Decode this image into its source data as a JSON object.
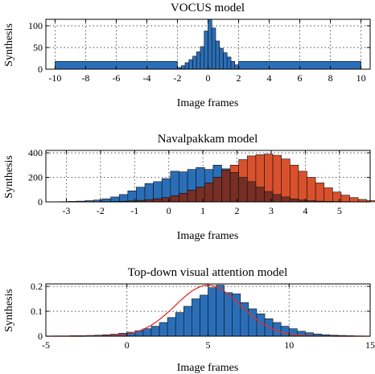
{
  "figure": {
    "background": "#ffffff"
  },
  "chart_data": [
    {
      "type": "bar",
      "title": "VOCUS model",
      "xlabel": "Image frames",
      "ylabel": "Synthesis",
      "xlim": [
        -10.6,
        10.6
      ],
      "ylim": [
        0,
        115
      ],
      "xticks": [
        -10,
        -8,
        -6,
        -4,
        -2,
        0,
        2,
        4,
        6,
        8,
        10
      ],
      "yticks": [
        0,
        50,
        100
      ],
      "grid": true,
      "colors": {
        "blue": "#2A6EB8"
      },
      "series": [
        {
          "color": "#2A6EB8",
          "bins": [
            {
              "x0": -10,
              "x1": -2,
              "y": 18
            },
            {
              "x0": -2,
              "x1": -1.75,
              "y": 4
            },
            {
              "x0": -1.75,
              "x1": -1.5,
              "y": 8
            },
            {
              "x0": -1.5,
              "x1": -1.25,
              "y": 15
            },
            {
              "x0": -1.25,
              "x1": -1.0,
              "y": 22
            },
            {
              "x0": -1.0,
              "x1": -0.75,
              "y": 30
            },
            {
              "x0": -0.75,
              "x1": -0.5,
              "y": 40
            },
            {
              "x0": -0.5,
              "x1": -0.25,
              "y": 52
            },
            {
              "x0": -0.25,
              "x1": 0.0,
              "y": 88
            },
            {
              "x0": 0.0,
              "x1": 0.25,
              "y": 118
            },
            {
              "x0": 0.25,
              "x1": 0.5,
              "y": 95
            },
            {
              "x0": 0.5,
              "x1": 0.75,
              "y": 65
            },
            {
              "x0": 0.75,
              "x1": 1.0,
              "y": 48
            },
            {
              "x0": 1.0,
              "x1": 1.25,
              "y": 38
            },
            {
              "x0": 1.25,
              "x1": 1.5,
              "y": 28
            },
            {
              "x0": 1.5,
              "x1": 1.75,
              "y": 18
            },
            {
              "x0": 1.75,
              "x1": 2.0,
              "y": 10
            },
            {
              "x0": 2.0,
              "x1": 10.0,
              "y": 18
            }
          ]
        }
      ]
    },
    {
      "type": "bar",
      "title": "Navalpakkam model",
      "xlabel": "Image frames",
      "ylabel": "Synthesis",
      "xlim": [
        -3.6,
        5.9
      ],
      "ylim": [
        0,
        420
      ],
      "xticks": [
        -3,
        -2,
        -1,
        0,
        1,
        2,
        3,
        4,
        5
      ],
      "yticks": [
        0,
        200,
        400
      ],
      "grid": true,
      "colors": {
        "blue": "#2A6EB8",
        "red": "#D9512C",
        "overlap": "#6B2A24"
      },
      "series": [
        {
          "color": "#2A6EB8",
          "x0": -3.2,
          "width": 0.25,
          "values": [
            2,
            4,
            6,
            10,
            15,
            25,
            40,
            60,
            90,
            120,
            150,
            165,
            190,
            250,
            245,
            265,
            280,
            265,
            300,
            270,
            240,
            200,
            165,
            120,
            85,
            60,
            40,
            25,
            15,
            10,
            6,
            4,
            3,
            2,
            1,
            1,
            0,
            0
          ]
        },
        {
          "color": "#D9512C",
          "x0": -3.2,
          "width": 0.25,
          "values": [
            0,
            0,
            0,
            0,
            1,
            2,
            3,
            5,
            8,
            12,
            18,
            25,
            35,
            50,
            70,
            95,
            120,
            155,
            200,
            260,
            300,
            345,
            375,
            385,
            390,
            380,
            350,
            300,
            250,
            200,
            155,
            115,
            80,
            55,
            35,
            20,
            10,
            4
          ]
        }
      ]
    },
    {
      "type": "bar",
      "title": "Top-down visual attention model",
      "xlabel": "Image frames",
      "ylabel": "Synthesis",
      "xlim": [
        -5,
        15
      ],
      "ylim": [
        0,
        0.21
      ],
      "xticks": [
        -5,
        0,
        5,
        10,
        15
      ],
      "yticks": [
        0,
        0.1,
        0.2
      ],
      "ytick_labels": [
        "0",
        "0.1",
        "0.2"
      ],
      "grid": true,
      "colors": {
        "blue": "#2A6EB8",
        "curve": "#E0302A"
      },
      "series": [
        {
          "color": "#2A6EB8",
          "x0": -4.5,
          "width": 0.5,
          "values": [
            0.001,
            0.001,
            0.002,
            0.002,
            0.003,
            0.004,
            0.006,
            0.008,
            0.012,
            0.016,
            0.022,
            0.03,
            0.04,
            0.055,
            0.075,
            0.095,
            0.12,
            0.15,
            0.165,
            0.195,
            0.205,
            0.175,
            0.17,
            0.135,
            0.11,
            0.09,
            0.07,
            0.055,
            0.04,
            0.03,
            0.02,
            0.014,
            0.009,
            0.006,
            0.004,
            0.003,
            0.002,
            0.001
          ]
        },
        {
          "type": "line",
          "color": "#E0302A",
          "mean": 5,
          "sd": 2,
          "samples": 80
        }
      ]
    }
  ]
}
